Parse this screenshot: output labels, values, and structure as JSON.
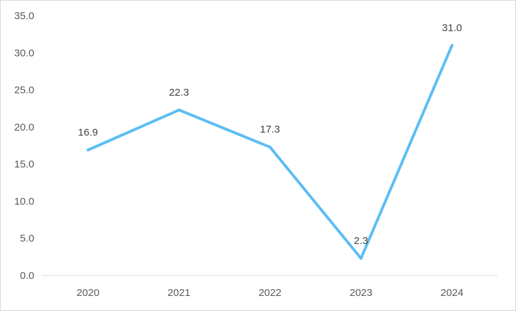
{
  "chart_data": {
    "type": "line",
    "title": "",
    "xlabel": "",
    "ylabel": "",
    "categories": [
      "2020",
      "2021",
      "2022",
      "2023",
      "2024"
    ],
    "series": [
      {
        "values": [
          16.9,
          22.3,
          17.3,
          2.3,
          31.0
        ],
        "data_labels": [
          "16.9",
          "22.3",
          "17.3",
          "2.3",
          "31.0"
        ],
        "color": "#5BBDF5"
      }
    ],
    "ylim": [
      0,
      35
    ],
    "yticks": [
      "0.0",
      "5.0",
      "10.0",
      "15.0",
      "20.0",
      "25.0",
      "30.0",
      "35.0"
    ],
    "grid": false,
    "legend": "none"
  }
}
